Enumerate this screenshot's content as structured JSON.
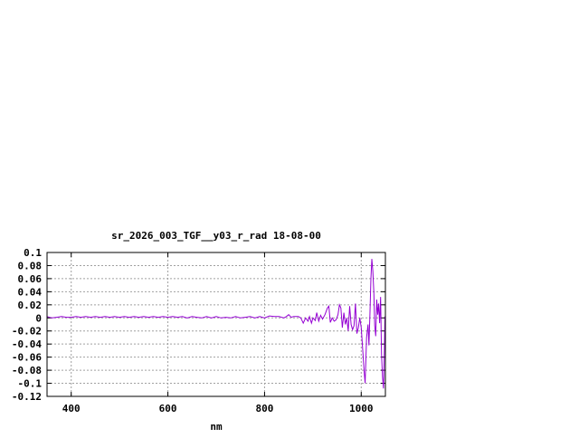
{
  "chart_data": {
    "type": "line",
    "title": "sr_2026_003_TGF__y03_r_rad 18-08-00",
    "xlabel": "nm",
    "ylabel": "",
    "xlim": [
      350,
      1050
    ],
    "ylim": [
      -0.12,
      0.1
    ],
    "xticks": [
      400,
      600,
      800,
      1000
    ],
    "xtick_labels": [
      "400",
      "600",
      "800",
      "1000"
    ],
    "yticks": [
      0.1,
      0.08,
      0.06,
      0.04,
      0.02,
      0,
      -0.02,
      -0.04,
      -0.06,
      -0.08,
      -0.1,
      -0.12
    ],
    "ytick_labels": [
      "0.1",
      "0.08",
      "0.06",
      "0.04",
      "0.02",
      "0",
      "-0.02",
      "-0.04",
      "-0.06",
      "-0.08",
      "-0.1",
      "-0.12"
    ],
    "grid": true,
    "colors": {
      "series": "#9400d3",
      "grid": "#a0a0a0",
      "axes": "#000000"
    },
    "series": [
      {
        "x": [
          350,
          360,
          370,
          380,
          390,
          400,
          410,
          420,
          430,
          440,
          450,
          460,
          470,
          480,
          490,
          500,
          510,
          520,
          530,
          540,
          550,
          560,
          570,
          580,
          590,
          600,
          610,
          620,
          630,
          640,
          650,
          660,
          670,
          680,
          690,
          700,
          710,
          720,
          730,
          740,
          750,
          760,
          770,
          780,
          790,
          800,
          810,
          820,
          830,
          840,
          845,
          850,
          855,
          860,
          865,
          870,
          875,
          880,
          885,
          890,
          893,
          897,
          900,
          905,
          908,
          912,
          916,
          920,
          925,
          930,
          933,
          936,
          940,
          944,
          948,
          952,
          955,
          958,
          961,
          964,
          967,
          970,
          973,
          976,
          979,
          982,
          985,
          988,
          991,
          994,
          997,
          1000,
          1003,
          1006,
          1008,
          1011,
          1014,
          1016,
          1018,
          1020,
          1022,
          1024,
          1026,
          1028,
          1030,
          1032,
          1034,
          1036,
          1038,
          1040,
          1042,
          1044,
          1046,
          1048,
          1049
        ],
        "y": [
          0.002,
          0.0,
          0.001,
          0.002,
          0.001,
          0.001,
          0.002,
          0.001,
          0.002,
          0.001,
          0.002,
          0.001,
          0.002,
          0.001,
          0.002,
          0.001,
          0.002,
          0.001,
          0.002,
          0.001,
          0.002,
          0.001,
          0.002,
          0.001,
          0.002,
          0.001,
          0.002,
          0.001,
          0.002,
          0.0,
          0.002,
          0.001,
          0.0,
          0.002,
          0.0,
          0.002,
          0.0,
          0.001,
          0.0,
          0.002,
          0.0,
          0.001,
          0.002,
          0.0,
          0.002,
          0.0,
          0.003,
          0.002,
          0.002,
          0.0,
          0.002,
          0.005,
          0.001,
          0.002,
          0.002,
          0.002,
          0.0,
          -0.008,
          0.0,
          -0.005,
          0.002,
          -0.008,
          0.0,
          -0.004,
          0.008,
          -0.005,
          0.004,
          -0.002,
          0.005,
          0.015,
          0.018,
          -0.007,
          0.0,
          -0.005,
          -0.003,
          0.005,
          0.02,
          0.015,
          -0.015,
          0.008,
          -0.01,
          0.0,
          -0.02,
          0.018,
          -0.01,
          -0.018,
          -0.012,
          0.022,
          -0.024,
          -0.015,
          0.0,
          -0.015,
          -0.048,
          -0.082,
          -0.1,
          -0.03,
          -0.01,
          -0.042,
          0.005,
          0.06,
          0.09,
          0.072,
          0.04,
          -0.012,
          -0.028,
          0.028,
          0.005,
          0.022,
          -0.008,
          0.032,
          -0.055,
          -0.09,
          -0.108,
          -0.05,
          0.002
        ]
      }
    ]
  }
}
